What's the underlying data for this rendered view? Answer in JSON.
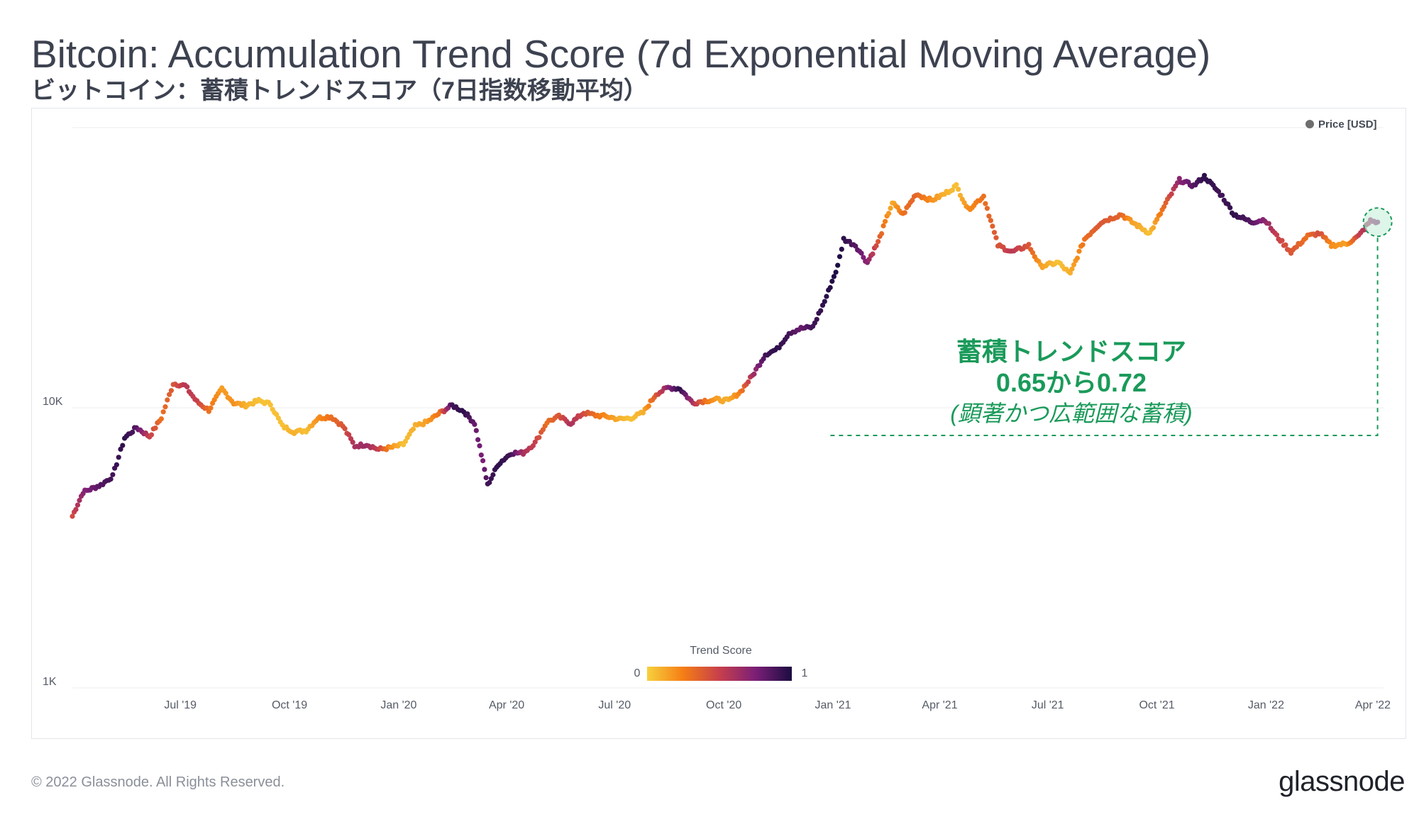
{
  "title": "Bitcoin: Accumulation Trend Score (7d Exponential Moving Average)",
  "subtitle": "ビットコイン：蓄積トレンドスコア（7日指数移動平均）",
  "footer": {
    "copyright": "© 2022 Glassnode. All Rights Reserved.",
    "brand": "glassnode"
  },
  "annotation": {
    "line1": "蓄積トレンドスコア",
    "line2": "0.65から0.72",
    "line3": "(顕著かつ広範囲な蓄積)"
  },
  "colors": {
    "low": "#f7d13d",
    "mid_low": "#f57d15",
    "mid": "#c73f4c",
    "mid_high": "#7b1f77",
    "high": "#1b0c41",
    "annotation": "#1a9a5a"
  },
  "chart_data": {
    "type": "scatter",
    "title": "Bitcoin: Accumulation Trend Score (7d Exponential Moving Average)",
    "series_label": "Price [USD]",
    "y_scale": "log",
    "ylim": [
      1000,
      100000
    ],
    "y_ticks": [
      {
        "value": 1000,
        "label": "1K"
      },
      {
        "value": 10000,
        "label": "10K"
      }
    ],
    "x_start": "2019-04-01",
    "x_end": "2022-04-10",
    "x_ticks": [
      {
        "date": "2019-07-01",
        "label": "Jul '19"
      },
      {
        "date": "2019-10-01",
        "label": "Oct '19"
      },
      {
        "date": "2020-01-01",
        "label": "Jan '20"
      },
      {
        "date": "2020-04-01",
        "label": "Apr '20"
      },
      {
        "date": "2020-07-01",
        "label": "Jul '20"
      },
      {
        "date": "2020-10-01",
        "label": "Oct '20"
      },
      {
        "date": "2021-01-01",
        "label": "Jan '21"
      },
      {
        "date": "2021-04-01",
        "label": "Apr '21"
      },
      {
        "date": "2021-07-01",
        "label": "Jul '21"
      },
      {
        "date": "2021-10-01",
        "label": "Oct '21"
      },
      {
        "date": "2022-01-01",
        "label": "Jan '22"
      },
      {
        "date": "2022-04-01",
        "label": "Apr '22"
      }
    ],
    "colorbar": {
      "title": "Trend Score",
      "min_label": "0",
      "max_label": "1"
    },
    "points": [
      {
        "date": "2019-04-01",
        "price": 4100,
        "score": 0.45
      },
      {
        "date": "2019-04-10",
        "price": 5000,
        "score": 0.7
      },
      {
        "date": "2019-04-25",
        "price": 5300,
        "score": 0.85
      },
      {
        "date": "2019-05-05",
        "price": 5700,
        "score": 0.9
      },
      {
        "date": "2019-05-15",
        "price": 7800,
        "score": 0.95
      },
      {
        "date": "2019-05-25",
        "price": 8500,
        "score": 0.85
      },
      {
        "date": "2019-06-05",
        "price": 7900,
        "score": 0.5
      },
      {
        "date": "2019-06-15",
        "price": 9200,
        "score": 0.3
      },
      {
        "date": "2019-06-25",
        "price": 12200,
        "score": 0.4
      },
      {
        "date": "2019-07-05",
        "price": 12000,
        "score": 0.55
      },
      {
        "date": "2019-07-15",
        "price": 10500,
        "score": 0.5
      },
      {
        "date": "2019-07-25",
        "price": 9800,
        "score": 0.3
      },
      {
        "date": "2019-08-05",
        "price": 11700,
        "score": 0.15
      },
      {
        "date": "2019-08-15",
        "price": 10400,
        "score": 0.2
      },
      {
        "date": "2019-08-25",
        "price": 10200,
        "score": 0.1
      },
      {
        "date": "2019-09-05",
        "price": 10600,
        "score": 0.05
      },
      {
        "date": "2019-09-15",
        "price": 10300,
        "score": 0.05
      },
      {
        "date": "2019-09-25",
        "price": 8600,
        "score": 0.05
      },
      {
        "date": "2019-10-05",
        "price": 8200,
        "score": 0.1
      },
      {
        "date": "2019-10-15",
        "price": 8300,
        "score": 0.05
      },
      {
        "date": "2019-10-25",
        "price": 9200,
        "score": 0.2
      },
      {
        "date": "2019-11-05",
        "price": 9300,
        "score": 0.3
      },
      {
        "date": "2019-11-15",
        "price": 8600,
        "score": 0.4
      },
      {
        "date": "2019-11-25",
        "price": 7300,
        "score": 0.6
      },
      {
        "date": "2019-12-05",
        "price": 7400,
        "score": 0.65
      },
      {
        "date": "2019-12-15",
        "price": 7100,
        "score": 0.5
      },
      {
        "date": "2019-12-25",
        "price": 7200,
        "score": 0.2
      },
      {
        "date": "2020-01-05",
        "price": 7400,
        "score": 0.05
      },
      {
        "date": "2020-01-15",
        "price": 8600,
        "score": 0.1
      },
      {
        "date": "2020-01-25",
        "price": 8900,
        "score": 0.15
      },
      {
        "date": "2020-02-05",
        "price": 9600,
        "score": 0.3
      },
      {
        "date": "2020-02-15",
        "price": 10200,
        "score": 0.9
      },
      {
        "date": "2020-02-25",
        "price": 9700,
        "score": 0.95
      },
      {
        "date": "2020-03-05",
        "price": 8800,
        "score": 0.8
      },
      {
        "date": "2020-03-12",
        "price": 6400,
        "score": 0.75
      },
      {
        "date": "2020-03-16",
        "price": 5300,
        "score": 0.9
      },
      {
        "date": "2020-03-25",
        "price": 6300,
        "score": 0.95
      },
      {
        "date": "2020-04-05",
        "price": 6900,
        "score": 0.9
      },
      {
        "date": "2020-04-15",
        "price": 6900,
        "score": 0.6
      },
      {
        "date": "2020-04-25",
        "price": 7500,
        "score": 0.5
      },
      {
        "date": "2020-05-05",
        "price": 8900,
        "score": 0.3
      },
      {
        "date": "2020-05-15",
        "price": 9300,
        "score": 0.4
      },
      {
        "date": "2020-05-25",
        "price": 8800,
        "score": 0.6
      },
      {
        "date": "2020-06-05",
        "price": 9600,
        "score": 0.45
      },
      {
        "date": "2020-06-15",
        "price": 9400,
        "score": 0.3
      },
      {
        "date": "2020-06-25",
        "price": 9300,
        "score": 0.2
      },
      {
        "date": "2020-07-05",
        "price": 9100,
        "score": 0.1
      },
      {
        "date": "2020-07-15",
        "price": 9200,
        "score": 0.05
      },
      {
        "date": "2020-07-25",
        "price": 9600,
        "score": 0.1
      },
      {
        "date": "2020-08-05",
        "price": 11200,
        "score": 0.4
      },
      {
        "date": "2020-08-15",
        "price": 11800,
        "score": 0.7
      },
      {
        "date": "2020-08-25",
        "price": 11700,
        "score": 0.95
      },
      {
        "date": "2020-09-05",
        "price": 10400,
        "score": 0.6
      },
      {
        "date": "2020-09-15",
        "price": 10600,
        "score": 0.3
      },
      {
        "date": "2020-09-25",
        "price": 10700,
        "score": 0.15
      },
      {
        "date": "2020-10-05",
        "price": 10600,
        "score": 0.1
      },
      {
        "date": "2020-10-15",
        "price": 11400,
        "score": 0.25
      },
      {
        "date": "2020-10-25",
        "price": 13000,
        "score": 0.6
      },
      {
        "date": "2020-11-05",
        "price": 15500,
        "score": 0.9
      },
      {
        "date": "2020-11-15",
        "price": 16200,
        "score": 0.95
      },
      {
        "date": "2020-11-25",
        "price": 18500,
        "score": 0.9
      },
      {
        "date": "2020-12-05",
        "price": 19200,
        "score": 0.8
      },
      {
        "date": "2020-12-15",
        "price": 19400,
        "score": 0.9
      },
      {
        "date": "2020-12-25",
        "price": 24000,
        "score": 0.95
      },
      {
        "date": "2021-01-05",
        "price": 32000,
        "score": 1.0
      },
      {
        "date": "2021-01-10",
        "price": 40000,
        "score": 0.95
      },
      {
        "date": "2021-01-20",
        "price": 38000,
        "score": 0.85
      },
      {
        "date": "2021-01-30",
        "price": 33000,
        "score": 0.7
      },
      {
        "date": "2021-02-08",
        "price": 39000,
        "score": 0.4
      },
      {
        "date": "2021-02-20",
        "price": 54000,
        "score": 0.1
      },
      {
        "date": "2021-03-01",
        "price": 49000,
        "score": 0.3
      },
      {
        "date": "2021-03-12",
        "price": 58000,
        "score": 0.35
      },
      {
        "date": "2021-03-25",
        "price": 55000,
        "score": 0.2
      },
      {
        "date": "2021-04-05",
        "price": 58000,
        "score": 0.1
      },
      {
        "date": "2021-04-15",
        "price": 62000,
        "score": 0.05
      },
      {
        "date": "2021-04-25",
        "price": 51000,
        "score": 0.2
      },
      {
        "date": "2021-05-08",
        "price": 57000,
        "score": 0.3
      },
      {
        "date": "2021-05-20",
        "price": 38000,
        "score": 0.4
      },
      {
        "date": "2021-06-01",
        "price": 36000,
        "score": 0.55
      },
      {
        "date": "2021-06-15",
        "price": 38000,
        "score": 0.4
      },
      {
        "date": "2021-06-25",
        "price": 32000,
        "score": 0.15
      },
      {
        "date": "2021-07-10",
        "price": 33000,
        "score": 0.05
      },
      {
        "date": "2021-07-20",
        "price": 30000,
        "score": 0.1
      },
      {
        "date": "2021-08-01",
        "price": 40000,
        "score": 0.3
      },
      {
        "date": "2021-08-15",
        "price": 46000,
        "score": 0.4
      },
      {
        "date": "2021-09-01",
        "price": 49000,
        "score": 0.35
      },
      {
        "date": "2021-09-10",
        "price": 46000,
        "score": 0.15
      },
      {
        "date": "2021-09-25",
        "price": 42000,
        "score": 0.05
      },
      {
        "date": "2021-10-10",
        "price": 55000,
        "score": 0.4
      },
      {
        "date": "2021-10-20",
        "price": 65000,
        "score": 0.7
      },
      {
        "date": "2021-11-01",
        "price": 62000,
        "score": 0.85
      },
      {
        "date": "2021-11-10",
        "price": 67000,
        "score": 0.95
      },
      {
        "date": "2021-11-25",
        "price": 57000,
        "score": 0.9
      },
      {
        "date": "2021-12-05",
        "price": 49000,
        "score": 0.95
      },
      {
        "date": "2021-12-20",
        "price": 46000,
        "score": 0.85
      },
      {
        "date": "2021-12-31",
        "price": 47000,
        "score": 0.7
      },
      {
        "date": "2022-01-10",
        "price": 41000,
        "score": 0.5
      },
      {
        "date": "2022-01-22",
        "price": 36000,
        "score": 0.4
      },
      {
        "date": "2022-02-05",
        "price": 41000,
        "score": 0.3
      },
      {
        "date": "2022-02-15",
        "price": 42000,
        "score": 0.45
      },
      {
        "date": "2022-02-25",
        "price": 38000,
        "score": 0.2
      },
      {
        "date": "2022-03-10",
        "price": 38500,
        "score": 0.15
      },
      {
        "date": "2022-03-20",
        "price": 41000,
        "score": 0.5
      },
      {
        "date": "2022-03-30",
        "price": 46500,
        "score": 0.65
      },
      {
        "date": "2022-04-05",
        "price": 46000,
        "score": 0.72
      }
    ]
  }
}
